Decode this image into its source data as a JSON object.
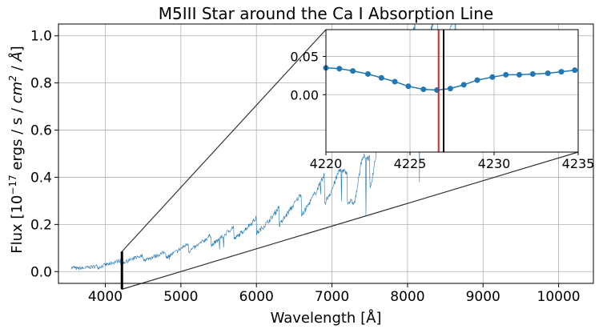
{
  "chart_data": {
    "type": "line",
    "title": "M5III Star around the Ca I Absorption Line",
    "xlabel": "Wavelength [Å]",
    "ylabel_parts": [
      "Flux [10",
      "−17",
      " ergs / s / ",
      "cm",
      "2",
      " / ",
      "Å",
      "]"
    ],
    "xlim": [
      3380,
      10460
    ],
    "ylim": [
      -0.05,
      1.05
    ],
    "xticks": [
      4000,
      5000,
      6000,
      7000,
      8000,
      9000,
      10000
    ],
    "yticks": [
      0.0,
      0.2,
      0.4,
      0.6,
      0.8,
      1.0
    ],
    "ytick_labels": [
      "0.0",
      "0.2",
      "0.4",
      "0.6",
      "0.8",
      "1.0"
    ],
    "grid": true,
    "series_color": "#1f77b4",
    "main_series_anchors": {
      "description": "approximate envelope of the noisy full spectrum (wavelength, flux)",
      "x": [
        3550,
        3700,
        3900,
        4000,
        4200,
        4400,
        4600,
        4800,
        5000,
        5200,
        5400,
        5600,
        5800,
        6000,
        6200,
        6400,
        6600,
        6800,
        7000,
        7100,
        7200,
        7300,
        7400,
        7500,
        7600,
        7700,
        7800,
        7900,
        8000,
        8200,
        8400,
        8600,
        8700
      ],
      "y": [
        0.015,
        0.015,
        0.02,
        0.03,
        0.04,
        0.055,
        0.06,
        0.07,
        0.09,
        0.11,
        0.13,
        0.15,
        0.17,
        0.19,
        0.21,
        0.25,
        0.28,
        0.32,
        0.36,
        0.4,
        0.35,
        0.3,
        0.45,
        0.4,
        0.55,
        0.6,
        0.7,
        0.8,
        0.85,
        0.9,
        0.95,
        1.0,
        1.0
      ]
    },
    "zoom_window": {
      "xlim": [
        4220,
        4235
      ],
      "ylim": [
        -0.075,
        0.085
      ]
    },
    "inset": {
      "xlim": [
        4220,
        4235
      ],
      "ylim": [
        -0.075,
        0.085
      ],
      "xticks": [
        4220,
        4225,
        4230,
        4235
      ],
      "yticks": [
        0.0,
        0.05
      ],
      "ytick_labels": [
        "0.00",
        "0.05"
      ],
      "x": [
        4220.0,
        4220.8,
        4221.6,
        4222.5,
        4223.3,
        4224.1,
        4224.9,
        4225.8,
        4226.6,
        4227.4,
        4228.2,
        4229.0,
        4229.9,
        4230.7,
        4231.5,
        4232.3,
        4233.2,
        4234.0,
        4234.8
      ],
      "y": [
        0.035,
        0.034,
        0.031,
        0.027,
        0.022,
        0.017,
        0.011,
        0.007,
        0.006,
        0.008,
        0.013,
        0.019,
        0.023,
        0.026,
        0.026,
        0.027,
        0.028,
        0.03,
        0.032
      ],
      "marker_color": "#1f77b4",
      "vlines": [
        {
          "x": 4226.7,
          "color": "#d62728"
        },
        {
          "x": 4227.0,
          "color": "#000000"
        }
      ]
    }
  }
}
